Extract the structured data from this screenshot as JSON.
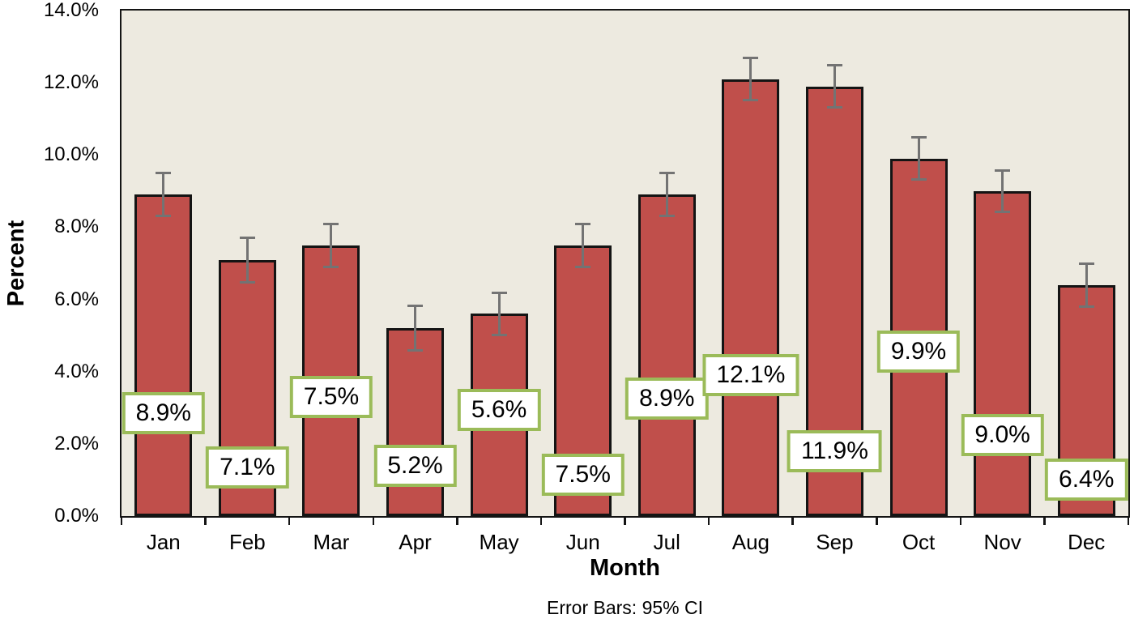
{
  "chart_data": {
    "type": "bar",
    "title": "",
    "xlabel": "Month",
    "ylabel": "Percent",
    "caption": "Error Bars: 95% CI",
    "categories": [
      "Jan",
      "Feb",
      "Mar",
      "Apr",
      "May",
      "Jun",
      "Jul",
      "Aug",
      "Sep",
      "Oct",
      "Nov",
      "Dec"
    ],
    "values": [
      8.9,
      7.1,
      7.5,
      5.2,
      5.6,
      7.5,
      8.9,
      12.1,
      11.9,
      9.9,
      9.0,
      6.4
    ],
    "data_labels": [
      "8.9%",
      "7.1%",
      "7.5%",
      "5.2%",
      "5.6%",
      "7.5%",
      "8.9%",
      "12.1%",
      "11.9%",
      "9.9%",
      "9.0%",
      "6.4%"
    ],
    "ci_half": [
      0.63,
      0.65,
      0.63,
      0.65,
      0.62,
      0.63,
      0.63,
      0.61,
      0.62,
      0.62,
      0.61,
      0.63
    ],
    "label_center_value": [
      2.85,
      1.35,
      3.3,
      1.4,
      2.95,
      1.15,
      3.25,
      3.9,
      1.8,
      4.55,
      2.25,
      1.0
    ],
    "ylim": [
      0,
      14
    ],
    "ytick_step": 2,
    "ytick_labels": [
      "0.0%",
      "2.0%",
      "4.0%",
      "6.0%",
      "8.0%",
      "10.0%",
      "12.0%",
      "14.0%"
    ],
    "grid": false,
    "legend": "none",
    "colors": {
      "bar_fill": "#c04f4b",
      "bar_border": "#141414",
      "plot_bg": "#edeae0",
      "error_bar": "#737373",
      "label_box_bg": "#ffffff",
      "label_box_border": "#9bbb59",
      "axis_text": "#000000",
      "page_bg": "#ffffff"
    }
  }
}
